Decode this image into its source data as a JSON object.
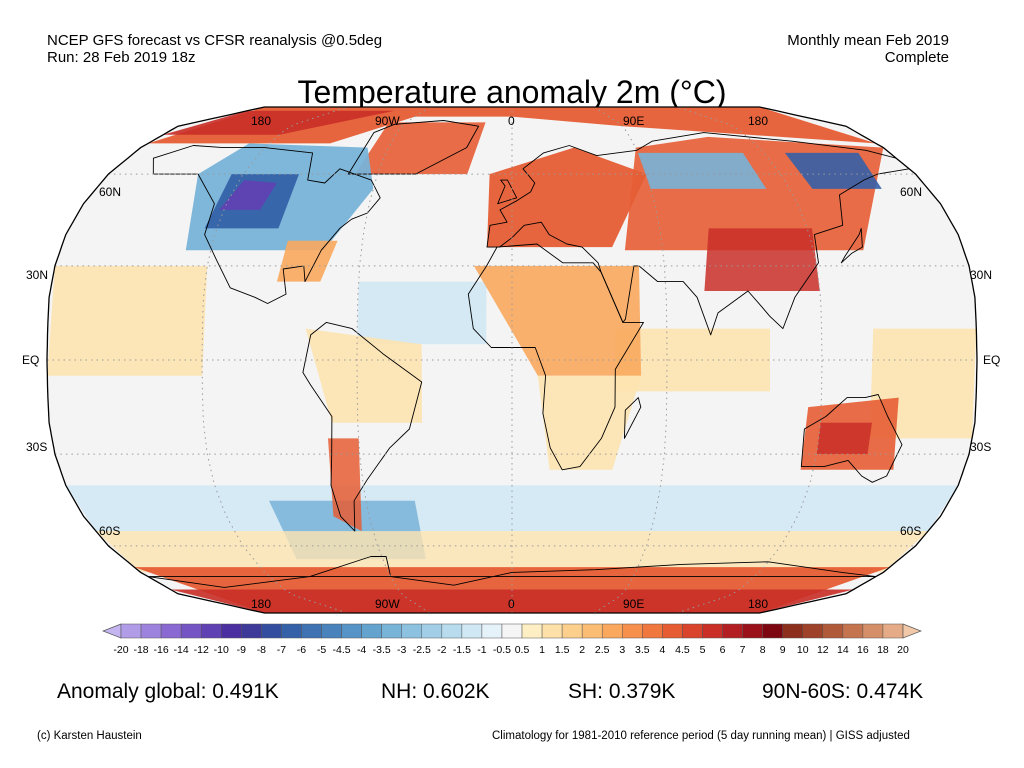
{
  "header": {
    "left_line1": "NCEP GFS forecast vs CFSR reanalysis @0.5deg",
    "left_line2": "Run: 28 Feb 2019 18z",
    "right_line1": "Monthly mean Feb 2019",
    "right_line2": "Complete"
  },
  "title": "Temperature anomaly 2m (°C)",
  "longitude_labels": [
    "180",
    "90W",
    "0",
    "90E",
    "180"
  ],
  "latitude_labels": {
    "n60": "60N",
    "n30": "30N",
    "eq": "EQ",
    "s30": "30S",
    "s60": "60S"
  },
  "colorbar": {
    "tick_labels": [
      "-20",
      "-18",
      "-16",
      "-14",
      "-12",
      "-10",
      "-9",
      "-8",
      "-7",
      "-6",
      "-5",
      "-4.5",
      "-4",
      "-3.5",
      "-3",
      "-2.5",
      "-2",
      "-1.5",
      "-1",
      "-0.5",
      "0.5",
      "1",
      "1.5",
      "2",
      "2.5",
      "3",
      "3.5",
      "4",
      "4.5",
      "5",
      "6",
      "7",
      "8",
      "9",
      "10",
      "12",
      "14",
      "16",
      "18",
      "20"
    ],
    "colors": [
      "#c4b5f1",
      "#b19ce8",
      "#9e83de",
      "#8a6ad2",
      "#7554c4",
      "#6041b3",
      "#4b2fa0",
      "#3d3a9a",
      "#334e9e",
      "#3561a8",
      "#3f72b2",
      "#4a82bc",
      "#5693c6",
      "#65a3cf",
      "#78b3d8",
      "#8cc2e0",
      "#a2cfe7",
      "#b8dcee",
      "#d0e8f4",
      "#e6f2f9",
      "#f5f5f5",
      "#fdeec4",
      "#fde0a8",
      "#fccf8c",
      "#fbbd74",
      "#f9a85e",
      "#f6904c",
      "#f0773e",
      "#e65d34",
      "#da432c",
      "#c92e27",
      "#b31e22",
      "#9a1119",
      "#7d0710",
      "#8c2f1c",
      "#9e4329",
      "#b15a3a",
      "#c4744f",
      "#d58f68",
      "#e4ab86",
      "#f1c8a8"
    ]
  },
  "stats": {
    "global": "Anomaly global: 0.491K",
    "nh": "NH: 0.602K",
    "sh": "SH: 0.379K",
    "arctic": "90N-60S: 0.474K"
  },
  "footer": {
    "credit": "(c) Karsten Haustein",
    "climatology": "Climatology for 1981-2010 reference period (5 day running mean) | GISS adjusted"
  },
  "map_colors": {
    "ocean_neutral": "#f4f4f4",
    "light_warm": "#fde3b0",
    "warm": "#f9a85e",
    "hot": "#e65d34",
    "very_hot": "#c92e27",
    "light_cold": "#d0e8f4",
    "cold": "#78b3d8",
    "very_cold": "#3561a8",
    "extreme_cold": "#6041b3",
    "outline": "#000000",
    "grid": "#9a9a9a"
  }
}
